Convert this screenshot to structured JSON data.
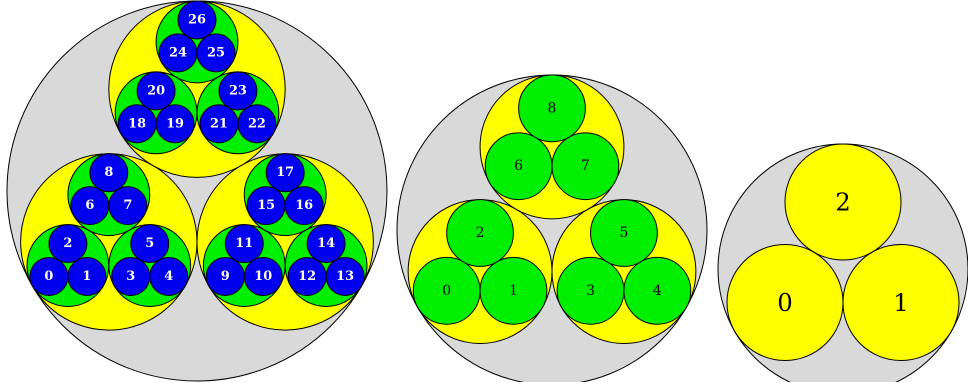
{
  "colors": {
    "background": "#ffffff",
    "outer_fill": "#d9d9d9",
    "level1_fill": "#ffff00",
    "level2_fill": "#00ee00",
    "level3_fill": "#0000ee",
    "stroke": "#000000",
    "dark_text": "#000000",
    "light_text": "#ffffff"
  },
  "diagrams": [
    {
      "depth": 3,
      "labels": [
        "0",
        "1",
        "2",
        "3",
        "4",
        "5",
        "6",
        "7",
        "8",
        "9",
        "10",
        "11",
        "12",
        "13",
        "14",
        "15",
        "16",
        "17",
        "18",
        "19",
        "20",
        "21",
        "22",
        "23",
        "24",
        "25",
        "26"
      ]
    },
    {
      "depth": 2,
      "labels": [
        "0",
        "1",
        "2",
        "3",
        "4",
        "5",
        "6",
        "7",
        "8"
      ]
    },
    {
      "depth": 1,
      "labels": [
        "0",
        "1",
        "2"
      ]
    }
  ]
}
